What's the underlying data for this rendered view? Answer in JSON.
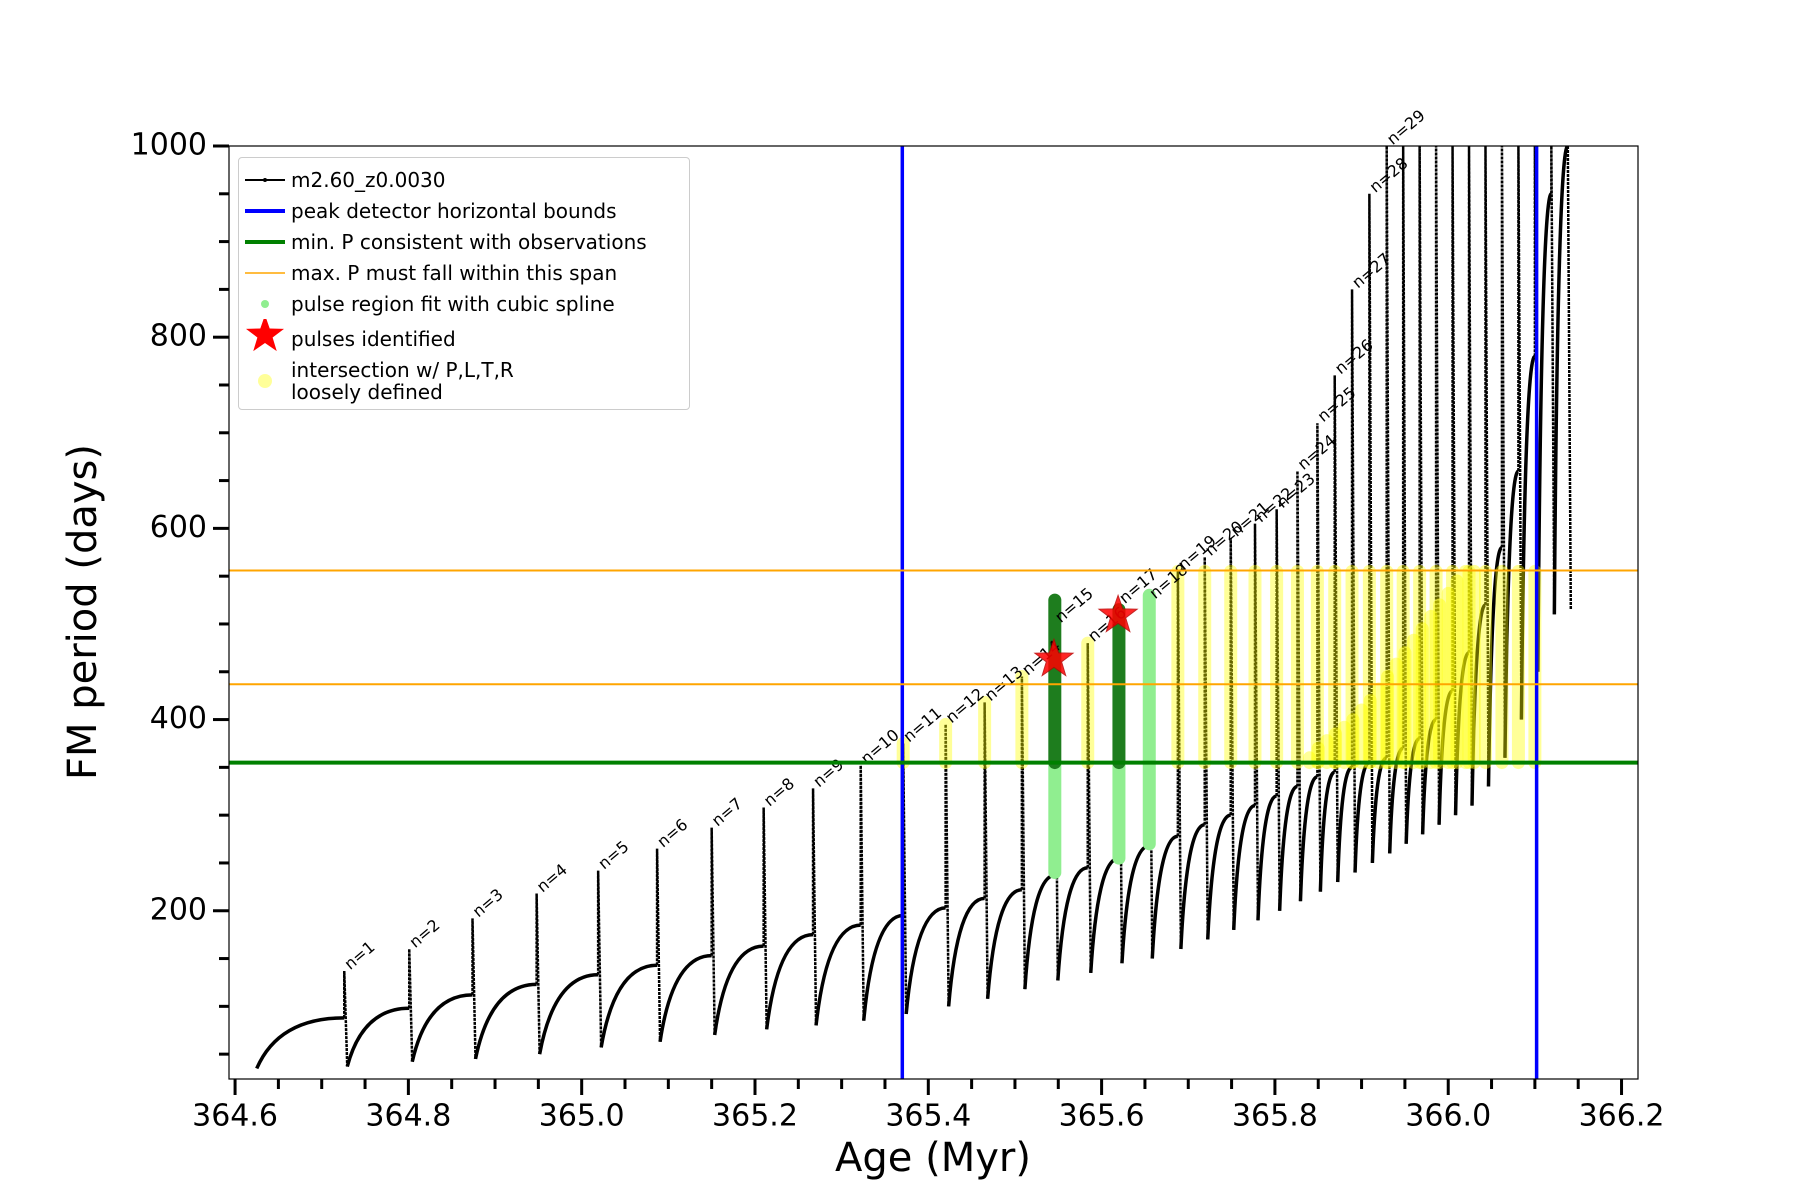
{
  "chart_data": {
    "type": "line",
    "xlabel": "Age (Myr)",
    "ylabel": "FM period (days)",
    "xlim": [
      364.593,
      366.219
    ],
    "ylim": [
      24,
      1000
    ],
    "xticks": [
      364.6,
      364.8,
      {
        "value": 365.0,
        "label": "365.0"
      },
      365.2,
      365.4,
      365.6,
      365.8,
      {
        "value": 366.0,
        "label": "366.0"
      },
      366.2
    ],
    "xminorticks": [
      364.65,
      364.7,
      364.75,
      364.85,
      364.9,
      364.95,
      365.05,
      365.1,
      365.15,
      365.25,
      365.3,
      365.35,
      365.45,
      365.5,
      365.55,
      365.65,
      365.7,
      365.75,
      365.85,
      365.9,
      365.95,
      366.05,
      366.1,
      366.15
    ],
    "yticks": [
      200,
      400,
      600,
      800,
      1000
    ],
    "yminorticks": [
      50,
      100,
      150,
      250,
      300,
      350,
      450,
      500,
      550,
      650,
      700,
      750,
      850,
      900,
      950
    ],
    "series": [
      {
        "type": "pulses",
        "name": "m2.60_z0.0030",
        "color": "#000000",
        "start_x": 364.625,
        "start_y": 35,
        "x": [
          364.726,
          364.801,
          364.874,
          364.948,
          365.019,
          365.087,
          365.15,
          365.21,
          365.267,
          365.322,
          365.371,
          365.42,
          365.465,
          365.508,
          365.546,
          365.584,
          365.62,
          365.655,
          365.688,
          365.719,
          365.749,
          365.777,
          365.802,
          365.826,
          365.849,
          365.869,
          365.889,
          365.909,
          365.929,
          365.948,
          365.967,
          365.986,
          366.005,
          366.024,
          366.043,
          366.062,
          366.081,
          366.1,
          366.119,
          366.138
        ],
        "base": [
          88,
          98,
          112,
          123,
          133,
          143,
          153,
          163,
          175,
          185,
          195,
          203,
          213,
          222,
          237,
          245,
          255,
          268,
          278,
          290,
          300,
          310,
          320,
          330,
          340,
          345,
          350,
          355,
          360,
          370,
          380,
          400,
          430,
          470,
          520,
          580,
          660,
          780,
          950,
          1000
        ],
        "top": [
          137,
          160,
          192,
          218,
          242,
          265,
          287,
          308,
          328,
          352,
          375,
          395,
          418,
          445,
          500,
          480,
          520,
          525,
          555,
          570,
          590,
          605,
          620,
          660,
          710,
          760,
          850,
          950,
          1000,
          1000,
          1000,
          1000,
          1000,
          1000,
          1000,
          1000,
          1000,
          1000,
          1000,
          1000
        ],
        "trough": [
          37,
          42,
          45,
          50,
          57,
          63,
          70,
          76,
          80,
          85,
          92,
          100,
          108,
          118,
          127,
          135,
          145,
          150,
          160,
          170,
          180,
          190,
          200,
          210,
          220,
          230,
          240,
          250,
          260,
          270,
          280,
          290,
          300,
          310,
          330,
          360,
          400,
          450,
          510,
          515
        ],
        "labels": [
          "n=1",
          "n=2",
          "n=3",
          "n=4",
          "n=5",
          "n=6",
          "n=7",
          "n=8",
          "n=9",
          "n=10",
          "n=11",
          "n=12",
          "n=13",
          "n=14",
          "n=15",
          "n=16",
          "n=17",
          "n=18",
          "n=19",
          "n=20",
          "n=21",
          "n=22",
          "n=23",
          "n=24",
          "n=25",
          "n=26",
          "n=27",
          "n=28",
          "n=29",
          null,
          null,
          null,
          null,
          null,
          null,
          null,
          null,
          null,
          null,
          null
        ]
      },
      {
        "type": "vline",
        "name": "peak detector horizontal bounds",
        "color": "#0000ff",
        "x": [
          365.37,
          366.102
        ]
      },
      {
        "type": "hline",
        "name": "min. P consistent with observations",
        "color": "#008000",
        "values": [
          355
        ]
      },
      {
        "type": "hline",
        "name": "max. P must fall within this span",
        "color": "#ffa500",
        "values": [
          556,
          437
        ]
      },
      {
        "type": "span",
        "name": "pulse region fit with cubic spline",
        "color": "#90ee90",
        "x": [
          365.546,
          365.62,
          365.655
        ],
        "low": [
          240,
          255,
          270
        ],
        "high": [
          355,
          355,
          530
        ]
      },
      {
        "type": "scatter",
        "name": "pulses identified",
        "color": "#ff0000",
        "x": [
          365.545,
          365.619
        ],
        "values": [
          463,
          509
        ]
      },
      {
        "type": "span",
        "name": "intersection w/ P,L,T,R\nloosely defined",
        "color": "#ffff00",
        "alpha": 0.4,
        "x": [
          365.371,
          365.42,
          365.465,
          365.508,
          365.584,
          365.688,
          365.719,
          365.749,
          365.777,
          365.802,
          365.826,
          365.849,
          365.869,
          365.889,
          365.909,
          365.929,
          365.948,
          365.967,
          365.986,
          366.005,
          366.024,
          366.043,
          366.062,
          366.081,
          366.1,
          365.84,
          365.85,
          365.86,
          365.87,
          365.88,
          365.89,
          365.9,
          365.91,
          365.92,
          365.93,
          365.94,
          365.95,
          365.96,
          365.97,
          365.98,
          365.99,
          366.0,
          366.01,
          366.02,
          366.03
        ],
        "low": [
          355,
          355,
          355,
          355,
          355,
          355,
          355,
          355,
          355,
          355,
          355,
          355,
          355,
          355,
          355,
          355,
          355,
          355,
          355,
          355,
          355,
          355,
          355,
          355,
          355,
          355,
          355,
          355,
          355,
          355,
          355,
          355,
          355,
          355,
          355,
          355,
          355,
          355,
          355,
          355,
          355,
          355,
          355,
          355,
          355
        ],
        "high": [
          375,
          395,
          418,
          445,
          480,
          555,
          555,
          555,
          555,
          555,
          555,
          555,
          555,
          555,
          555,
          555,
          555,
          555,
          555,
          555,
          555,
          555,
          555,
          555,
          555,
          360,
          370,
          378,
          385,
          392,
          400,
          410,
          420,
          432,
          445,
          458,
          470,
          483,
          495,
          508,
          520,
          532,
          545,
          555,
          555
        ]
      },
      {
        "type": "span",
        "color": "#1e7d1e",
        "x": [
          365.546,
          365.62
        ],
        "low": [
          355,
          355
        ],
        "high": [
          525,
          515
        ]
      }
    ]
  }
}
